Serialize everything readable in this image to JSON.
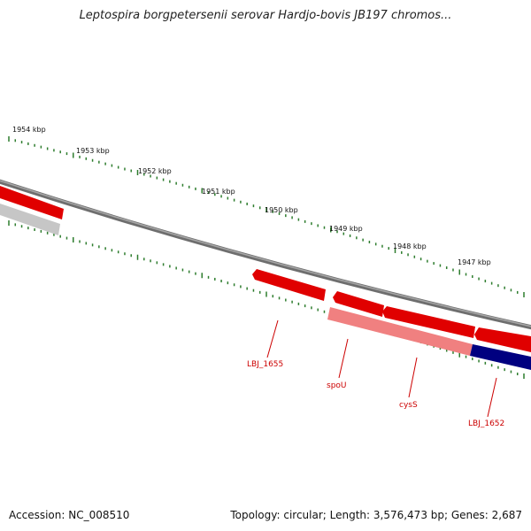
{
  "title": "Leptospira borgpetersenii serovar Hardjo-bovis JB197 chromos...",
  "footer": {
    "accession": "Accession: NC_008510",
    "summary": "Topology: circular; Length: 3,576,473 bp; Genes: 2,687"
  },
  "colors": {
    "forward_gene": "#ff0000",
    "reverse_gene": "#f08080",
    "selected_gene": "#000080",
    "backbone": "#808080",
    "ticks": "#2e7d2e",
    "label": "#cc0000"
  },
  "kbp_labels": [
    "1954 kbp",
    "1953 kbp",
    "1952 kbp",
    "1951 kbp",
    "1950 kbp",
    "1949 kbp",
    "1948 kbp",
    "1947 kbp"
  ],
  "gene_labels": [
    "LBJ_1655",
    "spoU",
    "cysS",
    "LBJ_1652"
  ]
}
